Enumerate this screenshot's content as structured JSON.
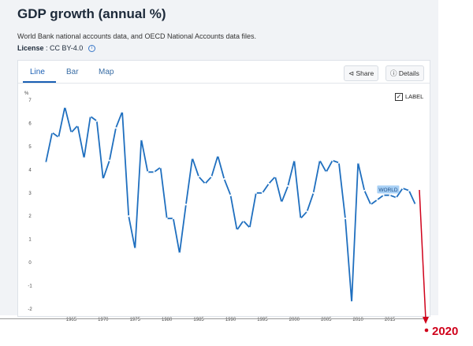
{
  "header": {
    "title": "GDP growth (annual %)",
    "source": "World Bank national accounts data, and OECD National Accounts data files.",
    "license_label": "License",
    "license_value": " : CC BY-4.0"
  },
  "tabs": [
    {
      "label": "Line",
      "active": true
    },
    {
      "label": "Bar",
      "active": false
    },
    {
      "label": "Map",
      "active": false
    }
  ],
  "toolbar": {
    "share_label": "Share",
    "details_label": "Details",
    "label_toggle": "LABEL",
    "label_checked": true
  },
  "annotation": {
    "text": "2020",
    "color": "#d0021b"
  },
  "chart_data": {
    "type": "line",
    "ylabel": "%",
    "ylim": [
      -2,
      7
    ],
    "yticks": [
      -2,
      -1,
      0,
      1,
      2,
      3,
      4,
      5,
      6,
      7
    ],
    "xlim": [
      1960,
      2020
    ],
    "xticks": [
      1965,
      1970,
      1975,
      1980,
      1985,
      1990,
      1995,
      2000,
      2005,
      2010,
      2015
    ],
    "line_color": "#1f6fbf",
    "series": [
      {
        "name": "WORLD",
        "x": [
          1961,
          1962,
          1963,
          1964,
          1965,
          1966,
          1967,
          1968,
          1969,
          1970,
          1971,
          1972,
          1973,
          1974,
          1975,
          1976,
          1977,
          1978,
          1979,
          1980,
          1981,
          1982,
          1983,
          1984,
          1985,
          1986,
          1987,
          1988,
          1989,
          1990,
          1991,
          1992,
          1993,
          1994,
          1995,
          1996,
          1997,
          1998,
          1999,
          2000,
          2001,
          2002,
          2003,
          2004,
          2005,
          2006,
          2007,
          2008,
          2009,
          2010,
          2011,
          2012,
          2013,
          2014,
          2015,
          2016,
          2017,
          2018,
          2019
        ],
        "values": [
          4.3,
          5.6,
          5.4,
          6.7,
          5.6,
          5.9,
          4.5,
          6.3,
          6.1,
          3.6,
          4.4,
          5.8,
          6.5,
          2.0,
          0.6,
          5.3,
          3.9,
          3.9,
          4.1,
          1.9,
          1.9,
          0.4,
          2.5,
          4.5,
          3.7,
          3.4,
          3.7,
          4.6,
          3.6,
          2.9,
          1.4,
          1.8,
          1.5,
          3.0,
          3.0,
          3.4,
          3.7,
          2.6,
          3.3,
          4.4,
          1.9,
          2.2,
          3.0,
          4.4,
          3.9,
          4.4,
          4.3,
          1.9,
          -1.7,
          4.3,
          3.1,
          2.5,
          2.7,
          2.9,
          2.9,
          2.8,
          3.2,
          3.1,
          2.5
        ]
      }
    ]
  }
}
